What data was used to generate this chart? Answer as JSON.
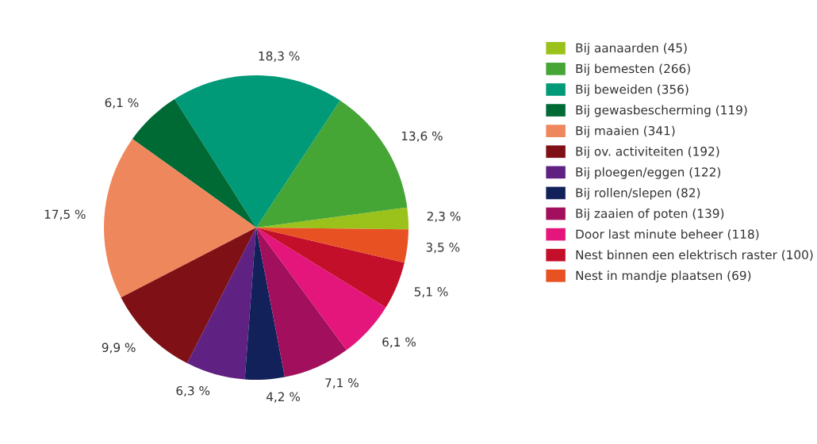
{
  "chart_data": {
    "type": "pie",
    "categories": [
      "Bij aanaarden (45)",
      "Bij bemesten (266)",
      "Bij beweiden (356)",
      "Bij gewasbescherming (119)",
      "Bij maaien (341)",
      "Bij ov. activiteiten (192)",
      "Bij ploegen/eggen (122)",
      "Bij rollen/slepen (82)",
      "Bij zaaien of poten (139)",
      "Door last minute beheer (118)",
      "Nest binnen een elektrisch raster (100)",
      "Nest in mandje plaatsen (69)"
    ],
    "values": [
      2.3,
      13.6,
      18.3,
      6.1,
      17.5,
      9.9,
      6.3,
      4.2,
      7.1,
      6.1,
      5.1,
      3.5
    ],
    "value_labels": [
      "2,3 %",
      "13,6 %",
      "18,3 %",
      "6,1 %",
      "17,5 %",
      "9,9 %",
      "6,3 %",
      "4,2 %",
      "7,1 %",
      "6,1 %",
      "5,1 %",
      "3,5 %"
    ],
    "colors": [
      "#9bc21a",
      "#45a535",
      "#009a78",
      "#006a35",
      "#ee875c",
      "#7f1015",
      "#5f2182",
      "#13215a",
      "#a20f5c",
      "#e4157b",
      "#c40f2b",
      "#e85222"
    ],
    "legend": "right"
  }
}
